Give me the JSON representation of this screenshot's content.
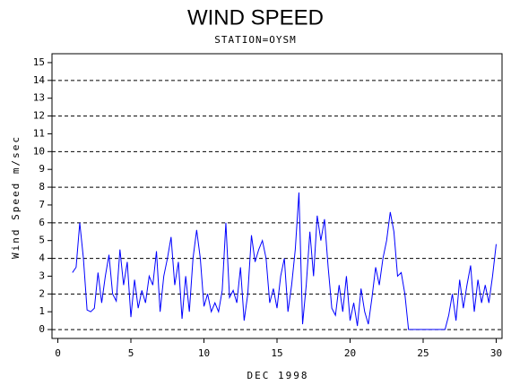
{
  "chart_data": {
    "type": "line",
    "title": "WIND SPEED",
    "subtitle": "STATION=OYSM",
    "xlabel": "DEC 1998",
    "ylabel": "Wind Speed m/sec",
    "xlim": [
      -0.4,
      30.4
    ],
    "xticks": [
      0,
      5,
      10,
      15,
      20,
      25,
      30
    ],
    "ylim": [
      -0.5,
      15.5
    ],
    "yticks": [
      0,
      1,
      2,
      3,
      4,
      5,
      6,
      7,
      8,
      9,
      10,
      11,
      12,
      13,
      14,
      15
    ],
    "grid_y": [
      0,
      2,
      4,
      6,
      8,
      10,
      12,
      14
    ],
    "x": [
      1,
      1.25,
      1.5,
      1.75,
      2,
      2.25,
      2.5,
      2.75,
      3,
      3.25,
      3.5,
      3.75,
      4,
      4.25,
      4.5,
      4.75,
      5,
      5.25,
      5.5,
      5.75,
      6,
      6.25,
      6.5,
      6.75,
      7,
      7.25,
      7.5,
      7.75,
      8,
      8.25,
      8.5,
      8.75,
      9,
      9.25,
      9.5,
      9.75,
      10,
      10.25,
      10.5,
      10.75,
      11,
      11.25,
      11.5,
      11.75,
      12,
      12.25,
      12.5,
      12.75,
      13,
      13.25,
      13.5,
      13.75,
      14,
      14.25,
      14.5,
      14.75,
      15,
      15.25,
      15.5,
      15.75,
      16,
      16.25,
      16.5,
      16.75,
      17,
      17.25,
      17.5,
      17.75,
      18,
      18.25,
      18.5,
      18.75,
      19,
      19.25,
      19.5,
      19.75,
      20,
      20.25,
      20.5,
      20.75,
      21,
      21.25,
      21.5,
      21.75,
      22,
      22.25,
      22.5,
      22.75,
      23,
      23.25,
      23.5,
      23.75,
      24,
      24.25,
      24.5,
      24.75,
      25,
      25.25,
      25.5,
      25.75,
      26,
      26.25,
      26.5,
      26.75,
      27,
      27.25,
      27.5,
      27.75,
      28,
      28.25,
      28.5,
      28.75,
      29,
      29.25,
      29.5,
      29.75,
      30
    ],
    "series": [
      {
        "name": "Wind Speed",
        "color": "#0000ff",
        "values": [
          3.2,
          3.5,
          6.0,
          4.0,
          1.1,
          1.0,
          1.2,
          3.2,
          1.5,
          3.0,
          4.2,
          2.0,
          1.6,
          4.5,
          2.5,
          3.8,
          0.7,
          2.8,
          1.2,
          2.2,
          1.5,
          3.0,
          2.5,
          4.4,
          1.0,
          3.0,
          4.0,
          5.2,
          2.5,
          3.8,
          0.6,
          3.0,
          1.0,
          4.0,
          5.6,
          4.0,
          1.3,
          2.0,
          1.0,
          1.5,
          1.0,
          2.2,
          6.0,
          1.8,
          2.2,
          1.5,
          3.5,
          0.5,
          2.0,
          5.3,
          3.8,
          4.5,
          5.0,
          4.0,
          1.5,
          2.3,
          1.2,
          3.0,
          4.0,
          1.0,
          2.5,
          4.5,
          7.7,
          0.3,
          2.5,
          5.5,
          3.0,
          6.4,
          5.0,
          6.2,
          3.5,
          1.2,
          0.8,
          2.5,
          1.0,
          3.0,
          0.5,
          1.5,
          0.2,
          2.3,
          1.0,
          0.3,
          1.8,
          3.5,
          2.5,
          4.0,
          5.0,
          6.6,
          5.5,
          3.0,
          3.2,
          2.0,
          0,
          0,
          0,
          0,
          0,
          0,
          0,
          0,
          0,
          0,
          0,
          0.8,
          2.0,
          0.5,
          2.8,
          1.2,
          2.5,
          3.6,
          1.0,
          2.8,
          1.5,
          2.5,
          1.5,
          3.0,
          4.8
        ]
      }
    ]
  }
}
